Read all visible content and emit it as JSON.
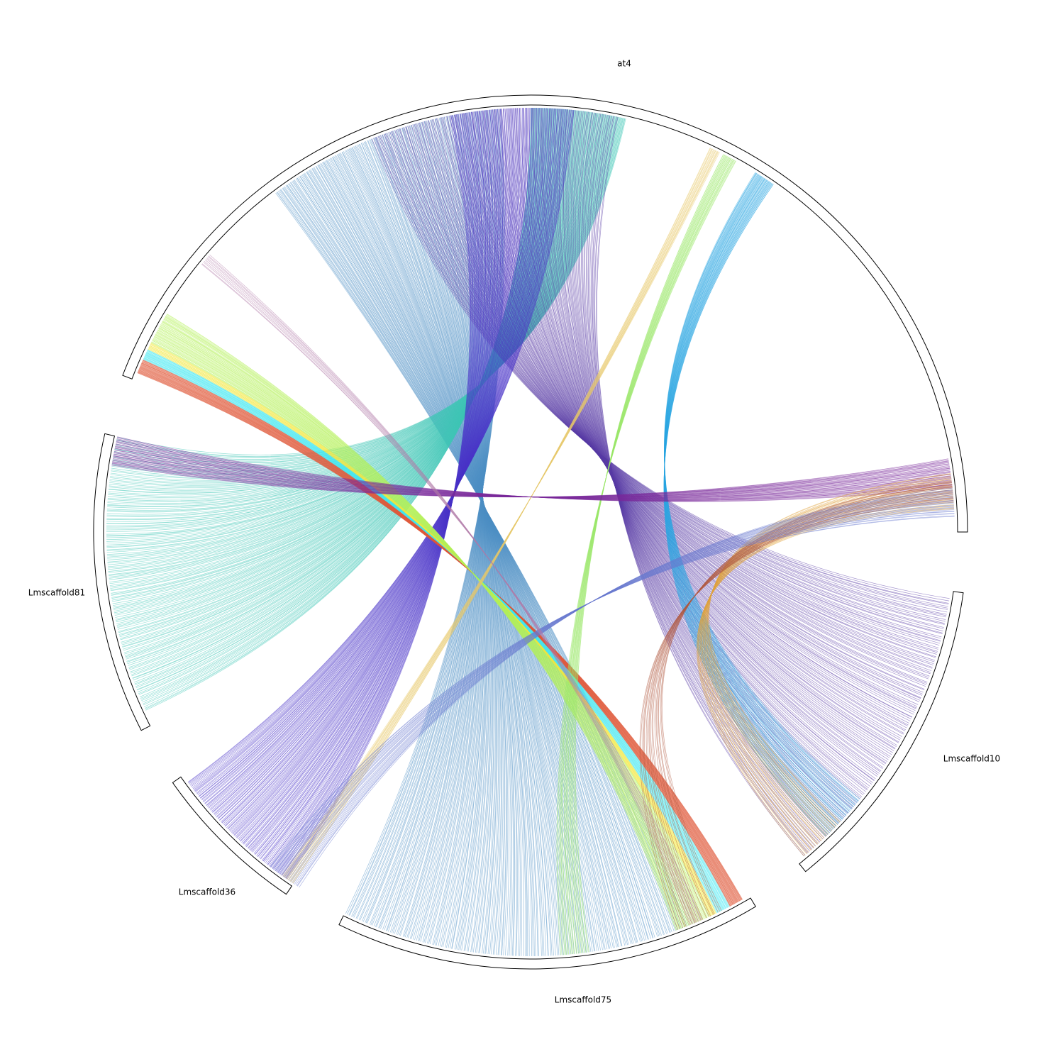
{
  "segments": [
    {
      "label": "at4"
    },
    {
      "label": "Lmscaffold10"
    },
    {
      "label": "Lmscaffold75"
    },
    {
      "label": "Lmscaffold36"
    },
    {
      "label": "Lmscaffold81"
    }
  ]
}
